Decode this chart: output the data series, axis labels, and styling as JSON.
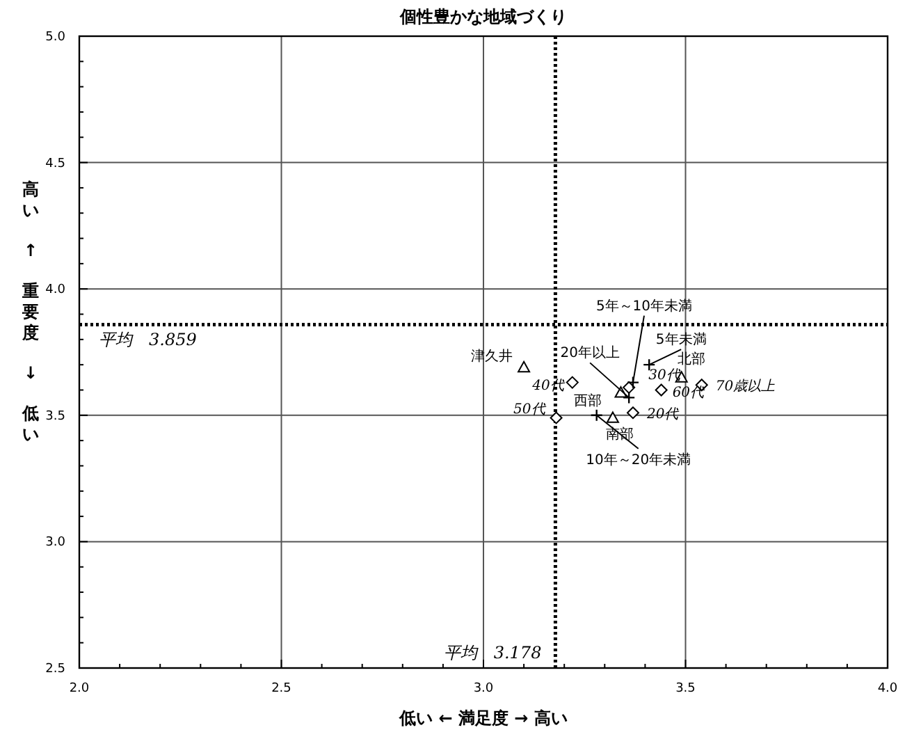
{
  "chart_data": {
    "type": "scatter",
    "title": "個性豊かな地域づくり",
    "xlabel": "低い ← 満足度 → 高い",
    "ylabel": "高い ↑ 重要度 ↓ 低い",
    "xlim": [
      2.0,
      4.0
    ],
    "ylim": [
      2.5,
      5.0
    ],
    "xticks": [
      {
        "value": 2.0,
        "label": "2.0"
      },
      {
        "value": 2.1,
        "label": null
      },
      {
        "value": 2.2,
        "label": null
      },
      {
        "value": 2.3,
        "label": null
      },
      {
        "value": 2.4,
        "label": null
      },
      {
        "value": 2.5,
        "label": "2.5"
      },
      {
        "value": 2.6,
        "label": null
      },
      {
        "value": 2.7,
        "label": null
      },
      {
        "value": 2.8,
        "label": null
      },
      {
        "value": 2.9,
        "label": null
      },
      {
        "value": 3.0,
        "label": "3.0"
      },
      {
        "value": 3.1,
        "label": null
      },
      {
        "value": 3.2,
        "label": null
      },
      {
        "value": 3.3,
        "label": null
      },
      {
        "value": 3.4,
        "label": null
      },
      {
        "value": 3.5,
        "label": "3.5"
      },
      {
        "value": 3.6,
        "label": null
      },
      {
        "value": 3.7,
        "label": null
      },
      {
        "value": 3.8,
        "label": null
      },
      {
        "value": 3.9,
        "label": null
      },
      {
        "value": 4.0,
        "label": "4.0"
      }
    ],
    "yticks": [
      {
        "value": 2.5,
        "label": "2.5"
      },
      {
        "value": 2.6,
        "label": null
      },
      {
        "value": 2.7,
        "label": null
      },
      {
        "value": 2.8,
        "label": null
      },
      {
        "value": 2.9,
        "label": null
      },
      {
        "value": 3.0,
        "label": "3.0"
      },
      {
        "value": 3.1,
        "label": null
      },
      {
        "value": 3.2,
        "label": null
      },
      {
        "value": 3.3,
        "label": null
      },
      {
        "value": 3.4,
        "label": null
      },
      {
        "value": 3.5,
        "label": "3.5"
      },
      {
        "value": 3.6,
        "label": null
      },
      {
        "value": 3.7,
        "label": null
      },
      {
        "value": 3.8,
        "label": null
      },
      {
        "value": 3.9,
        "label": null
      },
      {
        "value": 4.0,
        "label": "4.0"
      },
      {
        "value": 4.1,
        "label": null
      },
      {
        "value": 4.2,
        "label": null
      },
      {
        "value": 4.3,
        "label": null
      },
      {
        "value": 4.4,
        "label": null
      },
      {
        "value": 4.5,
        "label": "4.5"
      },
      {
        "value": 4.6,
        "label": null
      },
      {
        "value": 4.7,
        "label": null
      },
      {
        "value": 4.8,
        "label": null
      },
      {
        "value": 4.9,
        "label": null
      },
      {
        "value": 5.0,
        "label": "5.0"
      }
    ],
    "grid": true,
    "series": [
      {
        "color": "#000000",
        "marker": "triangle",
        "x": [
          3.1,
          3.49,
          3.32,
          3.34
        ],
        "values": [
          3.69,
          3.65,
          3.49,
          3.59
        ]
      },
      {
        "color": "#000000",
        "marker": "diamond",
        "x": [
          3.37,
          3.36,
          3.22,
          3.18,
          3.44,
          3.54
        ],
        "values": [
          3.51,
          3.61,
          3.63,
          3.49,
          3.6,
          3.62
        ]
      },
      {
        "color": "#000000",
        "marker": "cross",
        "x": [
          3.41,
          3.37,
          3.28,
          3.36
        ],
        "values": [
          3.7,
          3.63,
          3.5,
          3.57
        ]
      }
    ],
    "ref_lines": [
      {
        "axis": "x",
        "value": 3.178,
        "label": "平均　3.178",
        "line_style": "dotted"
      },
      {
        "axis": "y",
        "value": 3.859,
        "label": "平均　3.859",
        "line_style": "dotted"
      }
    ],
    "annotations": [
      {
        "text": "津久井",
        "x": 3.1,
        "y": 3.69
      },
      {
        "text": "北部",
        "x": 3.49,
        "y": 3.65
      },
      {
        "text": "南部",
        "x": 3.32,
        "y": 3.49
      },
      {
        "text": "西部",
        "x": 3.34,
        "y": 3.59
      },
      {
        "text": "20代",
        "x": 3.37,
        "y": 3.51
      },
      {
        "text": "30代",
        "x": 3.36,
        "y": 3.61
      },
      {
        "text": "40代",
        "x": 3.22,
        "y": 3.63
      },
      {
        "text": "50代",
        "x": 3.18,
        "y": 3.49
      },
      {
        "text": "60代",
        "x": 3.44,
        "y": 3.6
      },
      {
        "text": "70歳以上",
        "x": 3.54,
        "y": 3.62
      },
      {
        "text": "5年未満",
        "x": 3.41,
        "y": 3.7
      },
      {
        "text": "5年～10年未満",
        "x": 3.37,
        "y": 3.63
      },
      {
        "text": "10年～20年未満",
        "x": 3.28,
        "y": 3.5
      },
      {
        "text": "20年以上",
        "x": 3.36,
        "y": 3.57
      }
    ]
  }
}
